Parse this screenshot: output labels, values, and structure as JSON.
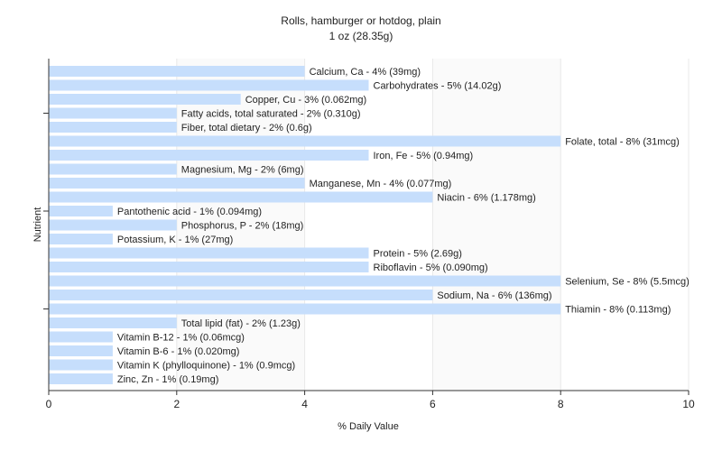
{
  "chart_data": {
    "type": "bar",
    "orientation": "horizontal",
    "title": "Rolls, hamburger or hotdog, plain",
    "subtitle": "1 oz (28.35g)",
    "xlabel": "% Daily Value",
    "ylabel": "Nutrient",
    "xlim": [
      0,
      10
    ],
    "xticks": [
      "0",
      "2",
      "4",
      "6",
      "8",
      "10"
    ],
    "grid": true,
    "bar_color": "#c6defc",
    "categories": [
      "Calcium, Ca",
      "Carbohydrates",
      "Copper, Cu",
      "Fatty acids, total saturated",
      "Fiber, total dietary",
      "Folate, total",
      "Iron, Fe",
      "Magnesium, Mg",
      "Manganese, Mn",
      "Niacin",
      "Pantothenic acid",
      "Phosphorus, P",
      "Potassium, K",
      "Protein",
      "Riboflavin",
      "Selenium, Se",
      "Sodium, Na",
      "Thiamin",
      "Total lipid (fat)",
      "Vitamin B-12",
      "Vitamin B-6",
      "Vitamin K (phylloquinone)",
      "Zinc, Zn"
    ],
    "values": [
      4,
      5,
      3,
      2,
      2,
      8,
      5,
      2,
      4,
      6,
      1,
      2,
      1,
      5,
      5,
      8,
      6,
      8,
      2,
      1,
      1,
      1,
      1
    ],
    "labels": [
      "Calcium, Ca - 4% (39mg)",
      "Carbohydrates - 5% (14.02g)",
      "Copper, Cu - 3% (0.062mg)",
      "Fatty acids, total saturated - 2% (0.310g)",
      "Fiber, total dietary - 2% (0.6g)",
      "Folate, total - 8% (31mcg)",
      "Iron, Fe - 5% (0.94mg)",
      "Magnesium, Mg - 2% (6mg)",
      "Manganese, Mn - 4% (0.077mg)",
      "Niacin - 6% (1.178mg)",
      "Pantothenic acid - 1% (0.094mg)",
      "Phosphorus, P - 2% (18mg)",
      "Potassium, K - 1% (27mg)",
      "Protein - 5% (2.69g)",
      "Riboflavin - 5% (0.090mg)",
      "Selenium, Se - 8% (5.5mcg)",
      "Sodium, Na - 6% (136mg)",
      "Thiamin - 8% (0.113mg)",
      "Total lipid (fat) - 2% (1.23g)",
      "Vitamin B-12 - 1% (0.06mcg)",
      "Vitamin B-6 - 1% (0.020mg)",
      "Vitamin K (phylloquinone) - 1% (0.9mcg)",
      "Zinc, Zn - 1% (0.19mg)"
    ]
  }
}
